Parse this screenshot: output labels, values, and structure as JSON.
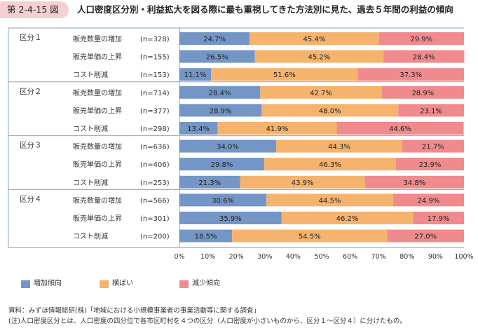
{
  "figure": {
    "number": "第 2-4-15 図",
    "title": "人口密度区分別・利益拡大を図る際に最も重視してきた方法別に見た、過去５年間の利益の傾向"
  },
  "chart_data": {
    "type": "bar",
    "orientation": "horizontal",
    "stacked": true,
    "percent": true,
    "xlim": [
      0,
      100
    ],
    "x_ticks": [
      "0%",
      "10%",
      "20%",
      "30%",
      "40%",
      "50%",
      "60%",
      "70%",
      "80%",
      "90%",
      "100%"
    ],
    "groups": [
      {
        "label": "区分１",
        "rows": [
          {
            "label": "販売数量の増加",
            "n": "(n=328)",
            "values": [
              24.7,
              45.4,
              29.9
            ]
          },
          {
            "label": "販売単価の上昇",
            "n": "(n=155)",
            "values": [
              26.5,
              45.2,
              28.4
            ]
          },
          {
            "label": "コスト削減",
            "n": "(n=153)",
            "values": [
              11.1,
              51.6,
              37.3
            ]
          }
        ]
      },
      {
        "label": "区分２",
        "rows": [
          {
            "label": "販売数量の増加",
            "n": "(n=714)",
            "values": [
              28.4,
              42.7,
              28.9
            ]
          },
          {
            "label": "販売単価の上昇",
            "n": "(n=377)",
            "values": [
              28.9,
              48.0,
              23.1
            ]
          },
          {
            "label": "コスト削減",
            "n": "(n=298)",
            "values": [
              13.4,
              41.9,
              44.6
            ]
          }
        ]
      },
      {
        "label": "区分３",
        "rows": [
          {
            "label": "販売数量の増加",
            "n": "(n=636)",
            "values": [
              34.0,
              44.3,
              21.7
            ]
          },
          {
            "label": "販売単価の上昇",
            "n": "(n=406)",
            "values": [
              29.8,
              46.3,
              23.9
            ]
          },
          {
            "label": "コスト削減",
            "n": "(n=253)",
            "values": [
              21.3,
              43.9,
              34.8
            ]
          }
        ]
      },
      {
        "label": "区分４",
        "rows": [
          {
            "label": "販売数量の増加",
            "n": "(n=566)",
            "values": [
              30.6,
              44.5,
              24.9
            ]
          },
          {
            "label": "販売単価の上昇",
            "n": "(n=301)",
            "values": [
              35.9,
              46.2,
              17.9
            ]
          },
          {
            "label": "コスト削減",
            "n": "(n=200)",
            "values": [
              18.5,
              54.5,
              27.0
            ]
          }
        ]
      }
    ],
    "series": [
      {
        "name": "増加傾向",
        "color": "#7396c6"
      },
      {
        "name": "横ばい",
        "color": "#f5b36e"
      },
      {
        "name": "減少傾向",
        "color": "#f08a8c"
      }
    ],
    "legend_position": "bottom"
  },
  "notes": [
    "資料：みずほ情報総研(株)「地域における小規模事業者の事業活動等に関する調査」",
    "(注)人口密度区分とは、人口密度の四分位で各市区町村を４つの区分（人口密度が小さいものから、区分１～区分４）に分けたもの。"
  ]
}
